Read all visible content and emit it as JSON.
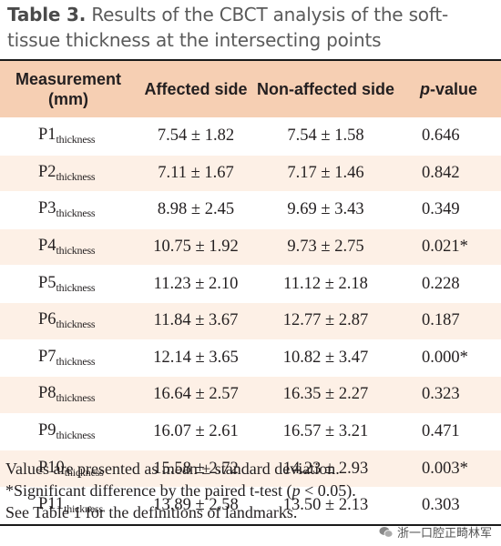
{
  "caption": {
    "label": "Table 3.",
    "text": "Results of the CBCT analysis of the soft-tissue thickness at the intersecting points"
  },
  "table": {
    "headers": {
      "measurement": "Measurement (mm)",
      "affected": "Affected side",
      "non_affected": "Non-affected side",
      "p_italic": "p",
      "p_rest": "-value"
    },
    "rows": [
      {
        "point": "P1",
        "sub": "thickness",
        "affected": "7.54 ± 1.82",
        "non_affected": "7.54 ± 1.58",
        "p": "0.646"
      },
      {
        "point": "P2",
        "sub": "thickness",
        "affected": "7.11 ± 1.67",
        "non_affected": "7.17 ± 1.46",
        "p": "0.842"
      },
      {
        "point": "P3",
        "sub": "thickness",
        "affected": "8.98 ± 2.45",
        "non_affected": "9.69 ± 3.43",
        "p": "0.349"
      },
      {
        "point": "P4",
        "sub": "thickness",
        "affected": "10.75 ± 1.92",
        "non_affected": "9.73 ± 2.75",
        "p": "0.021*"
      },
      {
        "point": "P5",
        "sub": "thickness",
        "affected": "11.23 ± 2.10",
        "non_affected": "11.12 ± 2.18",
        "p": "0.228"
      },
      {
        "point": "P6",
        "sub": "thickness",
        "affected": "11.84 ± 3.67",
        "non_affected": "12.77 ± 2.87",
        "p": "0.187"
      },
      {
        "point": "P7",
        "sub": "thickness",
        "affected": "12.14 ± 3.65",
        "non_affected": "10.82 ± 3.47",
        "p": "0.000*"
      },
      {
        "point": "P8",
        "sub": "thickness",
        "affected": "16.64 ± 2.57",
        "non_affected": "16.35 ± 2.27",
        "p": "0.323"
      },
      {
        "point": "P9",
        "sub": "thickness",
        "affected": "16.07 ± 2.61",
        "non_affected": "16.57 ± 3.21",
        "p": "0.471"
      },
      {
        "point": "P10",
        "sub": "thickness",
        "affected": "15.58 ± 2.72",
        "non_affected": "14.23 ± 2.93",
        "p": "0.003*"
      },
      {
        "point": "P11",
        "sub": "thickness",
        "affected": "13.89 ± 2.58",
        "non_affected": "13.50 ± 2.13",
        "p": "0.303"
      }
    ]
  },
  "notes": {
    "line1": "Values are presented as mean ± standard deviation.",
    "line2_a": "*Significant difference by the paired t-test (",
    "line2_p": "p",
    "line2_b": " < 0.05).",
    "line3": "See Table 1 for the definitions of landmarks."
  },
  "watermark": {
    "text": "浙一口腔正畸林军",
    "icon": "wechat-icon"
  },
  "colors": {
    "header_bg": "#f6cfb3",
    "shade_bg": "#fdf0e6",
    "caption_text": "#5a5a5a"
  }
}
